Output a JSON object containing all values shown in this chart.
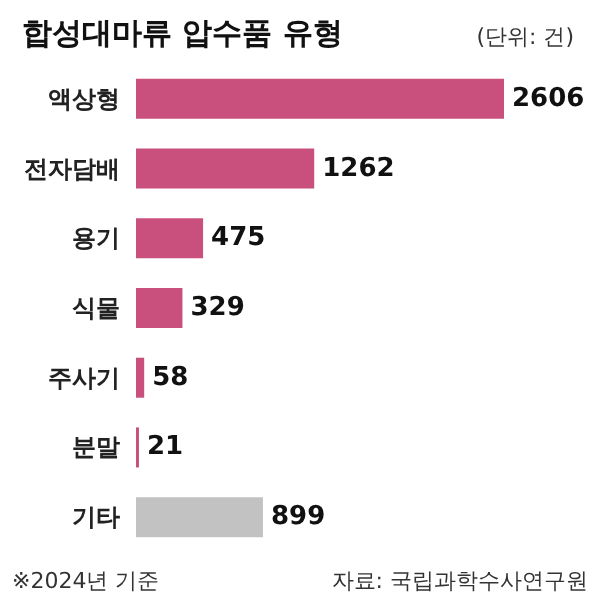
{
  "chart_data": {
    "type": "bar",
    "orientation": "horizontal",
    "title": "합성대마류 압수품 유형",
    "subtitle": "(단위: 건)",
    "categories": [
      "액상형",
      "전자담배",
      "용기",
      "식물",
      "주사기",
      "분말",
      "기타"
    ],
    "values": [
      2606,
      1262,
      475,
      329,
      58,
      21,
      899
    ],
    "colors": [
      "#c9507d",
      "#c9507d",
      "#c9507d",
      "#c9507d",
      "#c9507d",
      "#c9507d",
      "#c2c2c2"
    ],
    "data_labels": true,
    "annotations": [
      "※2024년 기준",
      "자료: 국립과학수사연구원"
    ]
  }
}
